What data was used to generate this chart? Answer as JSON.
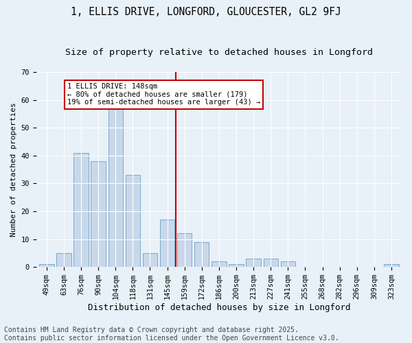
{
  "title": "1, ELLIS DRIVE, LONGFORD, GLOUCESTER, GL2 9FJ",
  "subtitle": "Size of property relative to detached houses in Longford",
  "xlabel": "Distribution of detached houses by size in Longford",
  "ylabel": "Number of detached properties",
  "categories": [
    "49sqm",
    "63sqm",
    "76sqm",
    "90sqm",
    "104sqm",
    "118sqm",
    "131sqm",
    "145sqm",
    "159sqm",
    "172sqm",
    "186sqm",
    "200sqm",
    "213sqm",
    "227sqm",
    "241sqm",
    "255sqm",
    "268sqm",
    "282sqm",
    "296sqm",
    "309sqm",
    "323sqm"
  ],
  "values": [
    1,
    5,
    41,
    38,
    57,
    33,
    5,
    17,
    12,
    9,
    2,
    1,
    3,
    3,
    2,
    0,
    0,
    0,
    0,
    0,
    1
  ],
  "bar_color": "#c8d8ea",
  "bar_edge_color": "#7aaac8",
  "vline_x_index": 7.5,
  "vline_color": "#cc0000",
  "annotation_text": "1 ELLIS DRIVE: 148sqm\n← 80% of detached houses are smaller (179)\n19% of semi-detached houses are larger (43) →",
  "annotation_box_color": "#ffffff",
  "annotation_box_edge_color": "#cc0000",
  "ylim": [
    0,
    70
  ],
  "yticks": [
    0,
    10,
    20,
    30,
    40,
    50,
    60,
    70
  ],
  "background_color": "#e8f0f8",
  "grid_color": "#ffffff",
  "footer": "Contains HM Land Registry data © Crown copyright and database right 2025.\nContains public sector information licensed under the Open Government Licence v3.0.",
  "title_fontsize": 10.5,
  "subtitle_fontsize": 9.5,
  "ylabel_fontsize": 8,
  "xlabel_fontsize": 9,
  "tick_fontsize": 7.5,
  "footer_fontsize": 7,
  "annotation_fontsize": 7.5
}
